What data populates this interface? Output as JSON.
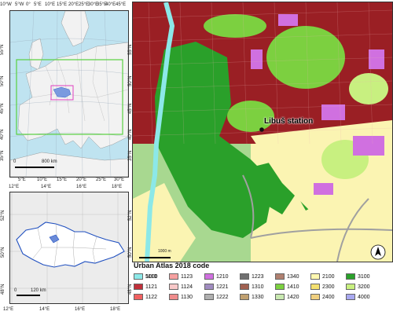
{
  "europe_panel": {
    "top_ticks": [
      "10°W",
      "5°W",
      "0°",
      "5°E",
      "10°E",
      "15°E",
      "20°E",
      "25°E",
      "30°E",
      "35°E",
      "40°E",
      "45°E"
    ],
    "left_ticks": [
      "55°N",
      "50°N",
      "45°N",
      "40°N",
      "35°N"
    ],
    "right_ticks": [
      "55°N",
      "50°N",
      "45°N",
      "40°N",
      "35°N"
    ],
    "bottom_ticks": [
      "5°E",
      "10°E",
      "15°E",
      "20°E",
      "25°E",
      "30°E"
    ],
    "scale_start": "0",
    "scale_label": "800 km"
  },
  "czech_panel": {
    "top_ticks": [
      "12°E",
      "14°E",
      "16°E",
      "18°E"
    ],
    "left_ticks": [
      "52°N",
      "50°N",
      "48°N"
    ],
    "right_ticks": [
      "52°N",
      "50°N",
      "48°N"
    ],
    "bottom_ticks": [
      "12°E",
      "14°E",
      "16°E",
      "18°E"
    ],
    "scale_start": "0",
    "scale_label": "120 km"
  },
  "urban_map": {
    "station_label": "Libuš station",
    "scale_label": "1000 m"
  },
  "legend": {
    "title": "Urban Atlas 2018 code",
    "items": [
      {
        "code": "1110",
        "color": "#8b1a1a"
      },
      {
        "code": "1121",
        "color": "#c0303a"
      },
      {
        "code": "1122",
        "color": "#f06060"
      },
      {
        "code": "1123",
        "color": "#f6a0a0"
      },
      {
        "code": "1124",
        "color": "#f8c8c8"
      },
      {
        "code": "1130",
        "color": "#f08c8c"
      },
      {
        "code": "1210",
        "color": "#d070e0"
      },
      {
        "code": "1221",
        "color": "#a08cc0"
      },
      {
        "code": "1222",
        "color": "#b0b0b0"
      },
      {
        "code": "1223",
        "color": "#707070"
      },
      {
        "code": "1310",
        "color": "#a06050"
      },
      {
        "code": "1330",
        "color": "#c0a070"
      },
      {
        "code": "1340",
        "color": "#b08070"
      },
      {
        "code": "1410",
        "color": "#7cd040"
      },
      {
        "code": "1420",
        "color": "#c8e8b0"
      },
      {
        "code": "2100",
        "color": "#fff8b0"
      },
      {
        "code": "2300",
        "color": "#f4e070"
      },
      {
        "code": "2400",
        "color": "#f0d080"
      },
      {
        "code": "3100",
        "color": "#2aa02a"
      },
      {
        "code": "3200",
        "color": "#c8f080"
      },
      {
        "code": "4000",
        "color": "#a8a8f0"
      },
      {
        "code": "5000",
        "color": "#8ce8e8"
      }
    ]
  }
}
